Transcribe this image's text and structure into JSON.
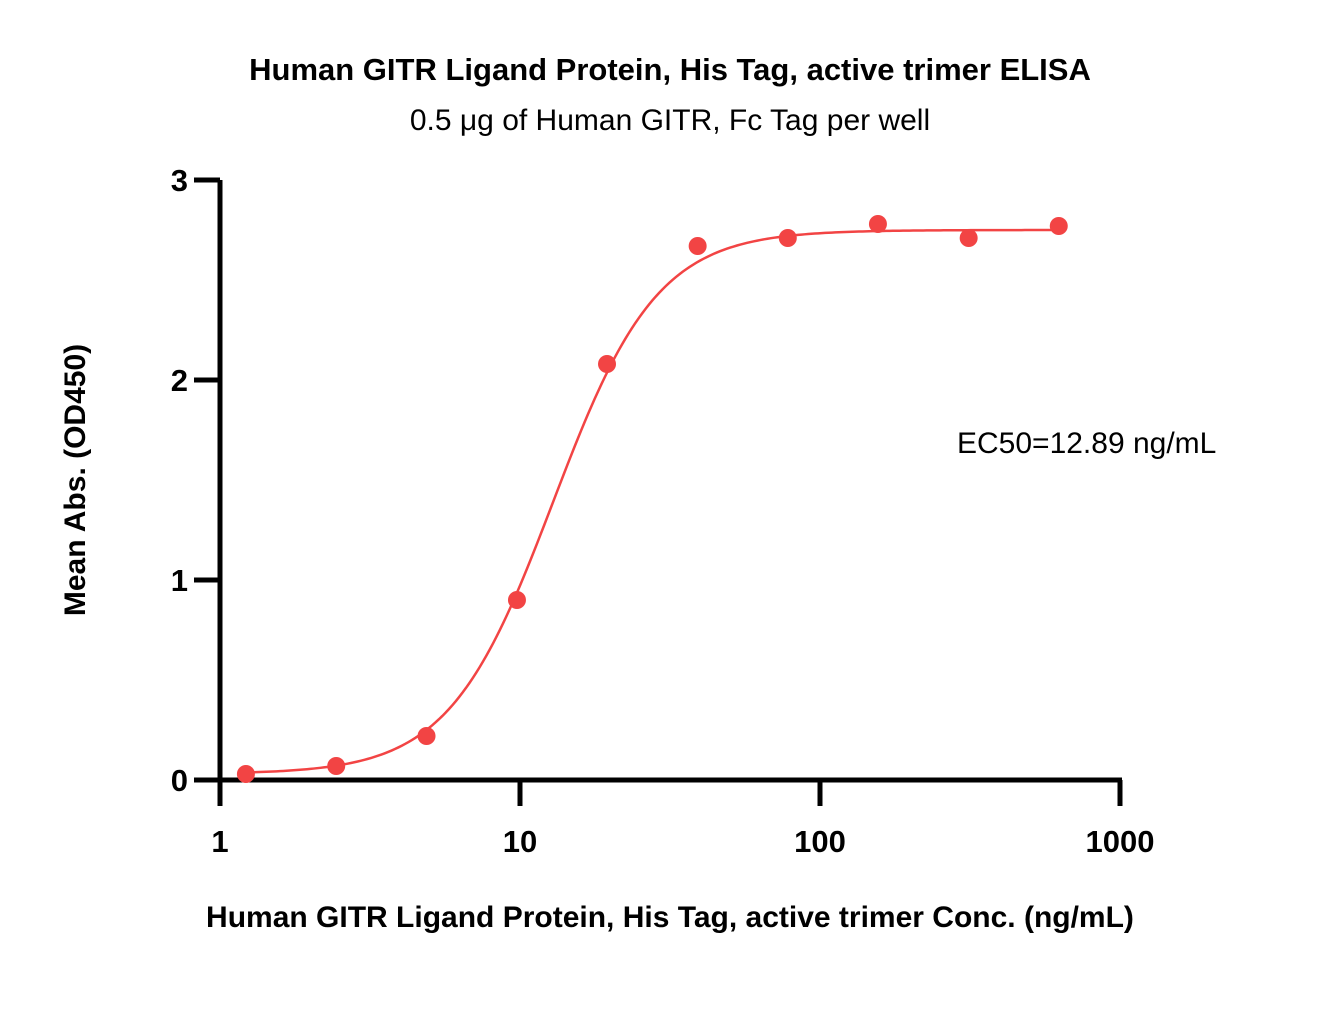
{
  "chart_data": {
    "type": "scatter",
    "title": "Human GITR Ligand Protein, His Tag, active trimer ELISA",
    "subtitle": "0.5 μg of Human GITR, Fc Tag per well",
    "xlabel": "Human GITR Ligand Protein, His Tag, active trimer Conc. (ng/mL)",
    "ylabel": "Mean Abs. (OD450)",
    "xscale": "log",
    "xlim": [
      1,
      1000
    ],
    "ylim": [
      0,
      3
    ],
    "x_ticks": [
      "1",
      "10",
      "100",
      "1000"
    ],
    "x_tick_values": [
      1,
      10,
      100,
      1000
    ],
    "y_ticks": [
      "0",
      "1",
      "2",
      "3"
    ],
    "y_tick_values": [
      0,
      1,
      2,
      3
    ],
    "grid": false,
    "color": "#f24444",
    "series": [
      {
        "points": [
          {
            "x": 1.22,
            "y": 0.03
          },
          {
            "x": 2.44,
            "y": 0.07
          },
          {
            "x": 4.88,
            "y": 0.22
          },
          {
            "x": 9.77,
            "y": 0.9
          },
          {
            "x": 19.5,
            "y": 2.08
          },
          {
            "x": 39.1,
            "y": 2.67
          },
          {
            "x": 78.1,
            "y": 2.71
          },
          {
            "x": 156,
            "y": 2.78
          },
          {
            "x": 313,
            "y": 2.71
          },
          {
            "x": 625,
            "y": 2.77
          }
        ],
        "fit": {
          "model": "4PL",
          "bottom": 0.03,
          "top": 2.75,
          "ec50": 12.89,
          "hill": 2.5
        }
      }
    ],
    "annotation": "EC50=12.89 ng/mL"
  }
}
